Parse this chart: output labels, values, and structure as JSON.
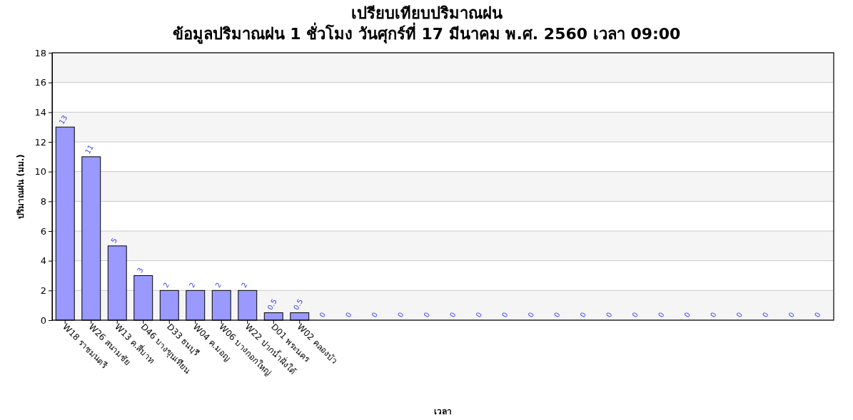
{
  "chart_data": {
    "type": "bar",
    "title": "เปรียบเทียบปริมาณฝน",
    "subtitle": "ข้อมูลปริมาณฝน 1 ชั่วโมง วันศุกร์ที่ 17 มีนาคม พ.ศ. 2560 เวลา 09:00",
    "xlabel": "เวลา",
    "ylabel": "ปริมาณฝน (มม.)",
    "categories": [
      "W18 ราชมนตรี",
      "W26 สนามชัย",
      "W13 ค.สี่บาท",
      "D46 บางขุนเทียน",
      "D33 ธนบุรี",
      "W04 ค.มอญ",
      "W06 บางกอกใหญ่",
      "W22 ปากน้ำฝั่งใต้",
      "D01 พระนคร",
      "W02 คลองบัว",
      null,
      null,
      null,
      null,
      null,
      null,
      null,
      null,
      null,
      null,
      null,
      null,
      null,
      null,
      null,
      null,
      null,
      null,
      null,
      null
    ],
    "values": [
      13,
      11,
      5,
      3,
      2,
      2,
      2,
      2,
      0.5,
      0.5,
      0,
      0,
      0,
      0,
      0,
      0,
      0,
      0,
      0,
      0,
      0,
      0,
      0,
      0,
      0,
      0,
      0,
      0,
      0,
      0
    ],
    "color": "#9999ff",
    "ylim": [
      0,
      18
    ],
    "yticks": [
      0,
      2,
      4,
      6,
      8,
      10,
      12,
      14,
      16,
      18
    ],
    "grid": "y",
    "data_labels": true
  }
}
